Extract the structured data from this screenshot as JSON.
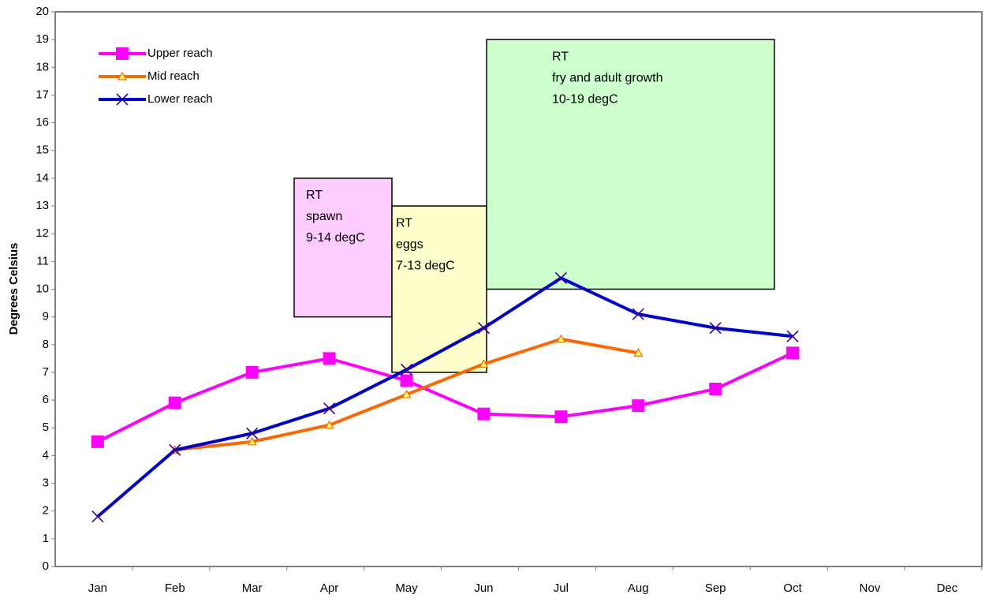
{
  "chart_data": {
    "type": "line",
    "y_label": "Degrees Celsius",
    "categories": [
      "Jan",
      "Feb",
      "Mar",
      "Apr",
      "May",
      "Jun",
      "Jul",
      "Aug",
      "Sep",
      "Oct",
      "Nov",
      "Dec"
    ],
    "ylim": [
      0,
      20
    ],
    "yticks": [
      0,
      1,
      2,
      3,
      4,
      5,
      6,
      7,
      8,
      9,
      10,
      11,
      12,
      13,
      14,
      15,
      16,
      17,
      18,
      19,
      20
    ],
    "grid": false,
    "legend": "upper-left",
    "series": [
      {
        "name": "Upper reach",
        "color": "#ff00ff",
        "marker": "square",
        "values": [
          4.5,
          5.9,
          7.0,
          7.5,
          6.7,
          5.5,
          5.4,
          5.8,
          6.4,
          7.7,
          null,
          null
        ]
      },
      {
        "name": "Mid reach",
        "color": "#ff6600",
        "marker": "triangle",
        "values": [
          null,
          4.2,
          4.5,
          5.1,
          6.2,
          7.3,
          8.2,
          7.7,
          null,
          null,
          null,
          null
        ]
      },
      {
        "name": "Lower reach",
        "color": "#0000cc",
        "marker": "x",
        "values": [
          1.8,
          4.2,
          4.8,
          5.7,
          7.1,
          8.6,
          10.4,
          9.1,
          8.6,
          8.3,
          null,
          null
        ]
      }
    ],
    "annotations": [
      {
        "lines": [
          "RT",
          "spawn",
          "9-14 degC"
        ],
        "range": [
          9,
          14
        ],
        "color": "#ffccff"
      },
      {
        "lines": [
          "RT",
          "eggs",
          "7-13 degC"
        ],
        "range": [
          7,
          13
        ],
        "color": "#ffffcc"
      },
      {
        "lines": [
          "RT",
          "fry and adult growth",
          "10-19 degC"
        ],
        "range": [
          10,
          19
        ],
        "color": "#ccffcc"
      }
    ]
  }
}
